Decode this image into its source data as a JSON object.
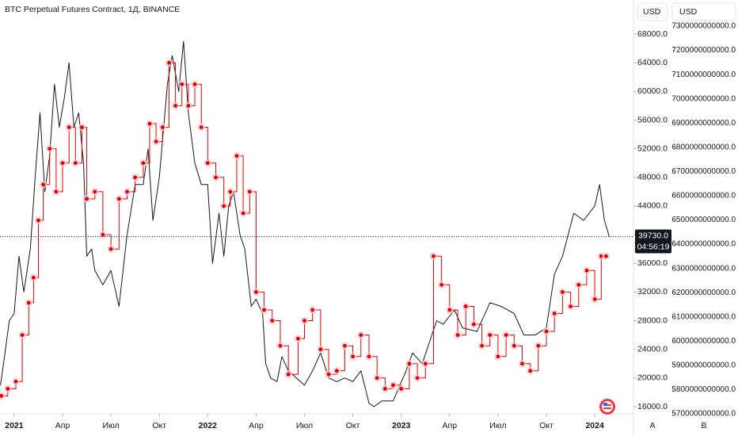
{
  "chart_data": {
    "type": "line",
    "title": "BTC Perpetual Futures Contract, 1Д, BINANCE",
    "currency_left": "USD",
    "currency_right": "USD",
    "last": {
      "value": 39730,
      "label": "39730.0"
    },
    "countdown": "04:56:19",
    "buttons": [
      "A",
      "В"
    ],
    "xlim": [
      -0.88,
      38.4
    ],
    "xticks": [
      {
        "value": 0,
        "label": "2021"
      },
      {
        "value": 3,
        "label": "Апр"
      },
      {
        "value": 6,
        "label": "Июл"
      },
      {
        "value": 9,
        "label": "Окт"
      },
      {
        "value": 12,
        "label": "2022"
      },
      {
        "value": 15,
        "label": "Апр"
      },
      {
        "value": 18,
        "label": "Июл"
      },
      {
        "value": 21,
        "label": "Окт"
      },
      {
        "value": 24,
        "label": "2023"
      },
      {
        "value": 27,
        "label": "Апр"
      },
      {
        "value": 30,
        "label": "Июл"
      },
      {
        "value": 33,
        "label": "Окт"
      },
      {
        "value": 36,
        "label": "2024"
      }
    ],
    "ylim": [
      15225,
      72760
    ],
    "yticks": [
      {
        "value": 16000,
        "label": "16000.0"
      },
      {
        "value": 20000,
        "label": "20000.0"
      },
      {
        "value": 24000,
        "label": "24000.0"
      },
      {
        "value": 28000,
        "label": "28000.0"
      },
      {
        "value": 32000,
        "label": "32000.0"
      },
      {
        "value": 36000,
        "label": "36000.0"
      },
      {
        "value": 40000,
        "label": "40000.0"
      },
      {
        "value": 44000,
        "label": "44000.0"
      },
      {
        "value": 48000,
        "label": "48000.0"
      },
      {
        "value": 52000,
        "label": "52000.0"
      },
      {
        "value": 56000,
        "label": "56000.0"
      },
      {
        "value": 60000,
        "label": "60000.0"
      },
      {
        "value": 64000,
        "label": "64000.0"
      },
      {
        "value": 68000,
        "label": "68000.0"
      }
    ],
    "y2lim": [
      5706500000000,
      7408000000000
    ],
    "y2ticks": [
      {
        "value": 5700000000000,
        "label": "5700000000000.0"
      },
      {
        "value": 5800000000000,
        "label": "5800000000000.0"
      },
      {
        "value": 5900000000000,
        "label": "5900000000000.0"
      },
      {
        "value": 6000000000000,
        "label": "6000000000000.0"
      },
      {
        "value": 6100000000000,
        "label": "6100000000000.0"
      },
      {
        "value": 6200000000000,
        "label": "6200000000000.0"
      },
      {
        "value": 6300000000000,
        "label": "6300000000000.0"
      },
      {
        "value": 6400000000000,
        "label": "6400000000000.0"
      },
      {
        "value": 6500000000000,
        "label": "6500000000000.0"
      },
      {
        "value": 6600000000000,
        "label": "6600000000000.0"
      },
      {
        "value": 6700000000000,
        "label": "6700000000000.0"
      },
      {
        "value": 6800000000000,
        "label": "6800000000000.0"
      },
      {
        "value": 6900000000000,
        "label": "6900000000000.0"
      },
      {
        "value": 7000000000000,
        "label": "7000000000000.0"
      },
      {
        "value": 7100000000000,
        "label": "7100000000000.0"
      },
      {
        "value": 7200000000000,
        "label": "7200000000000.0"
      },
      {
        "value": 7300000000000,
        "label": "7300000000000.0"
      }
    ],
    "series": [
      {
        "color": "#131722",
        "style": "line",
        "x": [
          -0.85,
          -0.6,
          -0.3,
          0,
          0.3,
          0.6,
          1.0,
          1.3,
          1.6,
          1.9,
          2.2,
          2.5,
          2.8,
          3.1,
          3.4,
          3.7,
          4.0,
          4.3,
          4.5,
          4.8,
          5.0,
          5.5,
          6.0,
          6.5,
          7.0,
          7.5,
          8.0,
          8.3,
          8.6,
          9.0,
          9.5,
          9.8,
          10.2,
          10.5,
          10.8,
          11.2,
          11.6,
          12.0,
          12.3,
          12.7,
          13.0,
          13.3,
          13.6,
          14.0,
          14.3,
          14.7,
          15.0,
          15.4,
          15.6,
          15.9,
          16.3,
          16.6,
          17.0,
          17.5,
          18.0,
          18.5,
          19.0,
          19.5,
          20.0,
          20.5,
          21.0,
          21.5,
          22.0,
          22.3,
          22.8,
          23.5,
          24.3,
          24.7,
          25.3,
          26.2,
          26.6,
          27.3,
          27.8,
          28.7,
          29.5,
          30.2,
          31.0,
          31.6,
          32.3,
          33.0,
          33.5,
          34.0,
          34.7,
          35.3,
          36.0,
          36.3,
          36.6,
          36.9
        ],
        "values": [
          19000,
          23000,
          28000,
          29000,
          37000,
          32000,
          38000,
          48000,
          57000,
          46000,
          51000,
          61000,
          55000,
          59000,
          64000,
          55000,
          57000,
          50000,
          37000,
          38000,
          35000,
          33000,
          35000,
          30000,
          40000,
          47000,
          47000,
          52000,
          42000,
          48000,
          61000,
          65000,
          60000,
          67000,
          57000,
          50000,
          47000,
          47000,
          36000,
          43000,
          37000,
          44000,
          46000,
          40000,
          38000,
          30000,
          31000,
          29000,
          22000,
          20000,
          19500,
          23000,
          21000,
          20000,
          19000,
          21000,
          23500,
          20000,
          19500,
          20000,
          19500,
          21000,
          16500,
          16000,
          16800,
          16800,
          21000,
          23500,
          22000,
          28000,
          27500,
          29500,
          27000,
          26500,
          30500,
          30000,
          29000,
          26000,
          26000,
          27000,
          34500,
          37000,
          43000,
          42000,
          44000,
          47000,
          42000,
          39730
        ]
      },
      {
        "color": "#e00000",
        "style": "step",
        "x": [
          -0.8,
          -0.4,
          0.1,
          0.5,
          0.9,
          1.2,
          1.5,
          1.8,
          2.2,
          2.6,
          3.0,
          3.4,
          3.8,
          4.2,
          4.5,
          5.0,
          5.5,
          6.0,
          6.5,
          7.0,
          7.5,
          8.0,
          8.4,
          8.8,
          9.2,
          9.6,
          10.0,
          10.4,
          10.8,
          11.2,
          11.6,
          12.0,
          12.5,
          13.0,
          13.4,
          13.8,
          14.2,
          14.6,
          15.0,
          15.5,
          16.0,
          16.5,
          17.0,
          17.6,
          18.0,
          18.5,
          19.0,
          19.5,
          20.0,
          20.5,
          21.0,
          21.5,
          22.0,
          22.5,
          23.0,
          23.5,
          24.0,
          24.5,
          25.0,
          25.5,
          26.0,
          26.5,
          27.0,
          27.5,
          28.0,
          28.5,
          29.0,
          29.5,
          30.0,
          30.5,
          31.0,
          31.5,
          32.0,
          32.5,
          33.0,
          33.5,
          34.0,
          34.5,
          35.0,
          35.5,
          36.0,
          36.4,
          36.7
        ],
        "values": [
          17500,
          18500,
          19500,
          26000,
          30500,
          34000,
          42000,
          47000,
          52000,
          46000,
          50000,
          55000,
          50000,
          55000,
          45000,
          46000,
          40000,
          38000,
          45000,
          46000,
          48000,
          50000,
          55500,
          53000,
          55000,
          64000,
          58000,
          61000,
          58000,
          61000,
          55000,
          50000,
          48000,
          44000,
          46000,
          51000,
          43000,
          46000,
          32000,
          29500,
          28000,
          24500,
          20500,
          25500,
          28000,
          29500,
          24000,
          20500,
          21000,
          24500,
          23000,
          26000,
          23000,
          20000,
          18500,
          19000,
          18500,
          22000,
          20000,
          22000,
          37000,
          33000,
          29500,
          26000,
          30000,
          27500,
          24500,
          26000,
          23000,
          26000,
          24500,
          22000,
          21000,
          24500,
          26500,
          29000,
          32000,
          30000,
          33000,
          35000,
          31000,
          37000,
          37000
        ]
      }
    ]
  }
}
